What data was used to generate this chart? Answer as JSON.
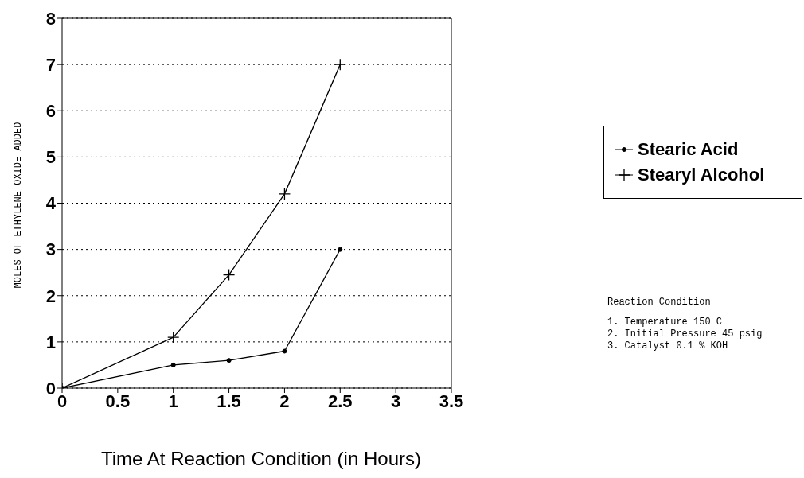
{
  "chart_data": {
    "type": "line",
    "xlabel": "Time At Reaction Condition (in Hours)",
    "ylabel": "MOLES OF ETHYLENE OXIDE ADDED",
    "x": [
      0,
      1,
      1.5,
      2,
      2.5
    ],
    "xlim": [
      0,
      3.5
    ],
    "xticks": [
      0,
      0.5,
      1,
      1.5,
      2,
      2.5,
      3,
      3.5
    ],
    "ylim": [
      0,
      8
    ],
    "yticks": [
      0,
      1,
      2,
      3,
      4,
      5,
      6,
      7,
      8
    ],
    "grid": "y",
    "legend": "right",
    "line_style": "solid",
    "series": [
      {
        "name": "Stearic Acid",
        "color": "#000000",
        "marker": "circle",
        "values": [
          0,
          0.5,
          0.6,
          0.8,
          3
        ]
      },
      {
        "name": "Stearyl Alcohol",
        "color": "#000000",
        "marker": "cross",
        "values": [
          0,
          1.1,
          2.45,
          4.2,
          7
        ]
      }
    ],
    "annotations": [
      "Reaction Condition",
      "1. Temperature 150 C",
      "2. Initial Pressure 45 psig",
      "3. Catalyst 0.1 % KOH"
    ]
  }
}
